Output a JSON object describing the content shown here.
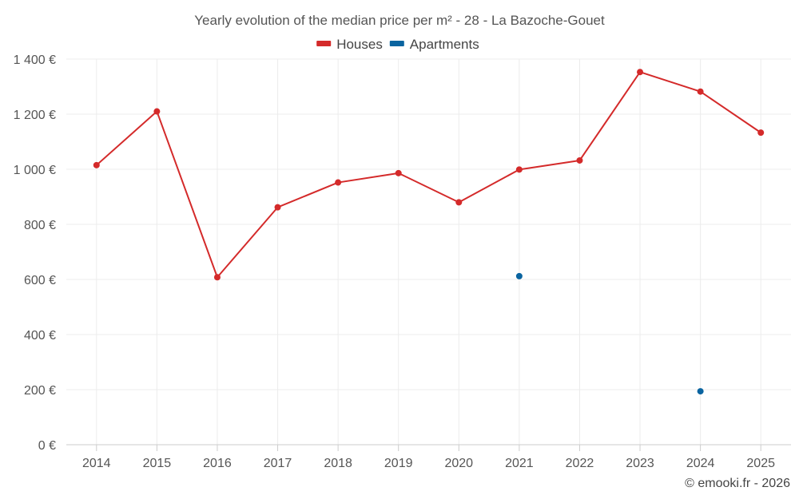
{
  "chart_data": {
    "type": "line",
    "title": "Yearly evolution of the median price per m² - 28 - La Bazoche-Gouet",
    "categories": [
      "2014",
      "2015",
      "2016",
      "2017",
      "2018",
      "2019",
      "2020",
      "2021",
      "2022",
      "2023",
      "2024",
      "2025"
    ],
    "series": [
      {
        "name": "Houses",
        "color": "#d42a2a",
        "values": [
          1015,
          1210,
          608,
          862,
          952,
          986,
          880,
          999,
          1032,
          1353,
          1282,
          1133
        ]
      },
      {
        "name": "Apartments",
        "color": "#0a64a0",
        "values": [
          null,
          null,
          null,
          null,
          null,
          null,
          null,
          612,
          null,
          null,
          194,
          null
        ]
      }
    ],
    "ylim": [
      0,
      1400
    ],
    "yticks": [
      0,
      200,
      400,
      600,
      800,
      1000,
      1200,
      1400
    ],
    "ytick_labels": [
      "0 €",
      "200 €",
      "400 €",
      "600 €",
      "800 €",
      "1 000 €",
      "1 200 €",
      "1 400 €"
    ],
    "xlabel": "",
    "ylabel": "",
    "grid": true,
    "legend_position": "top-center"
  },
  "credit": "© emooki.fr - 2026"
}
